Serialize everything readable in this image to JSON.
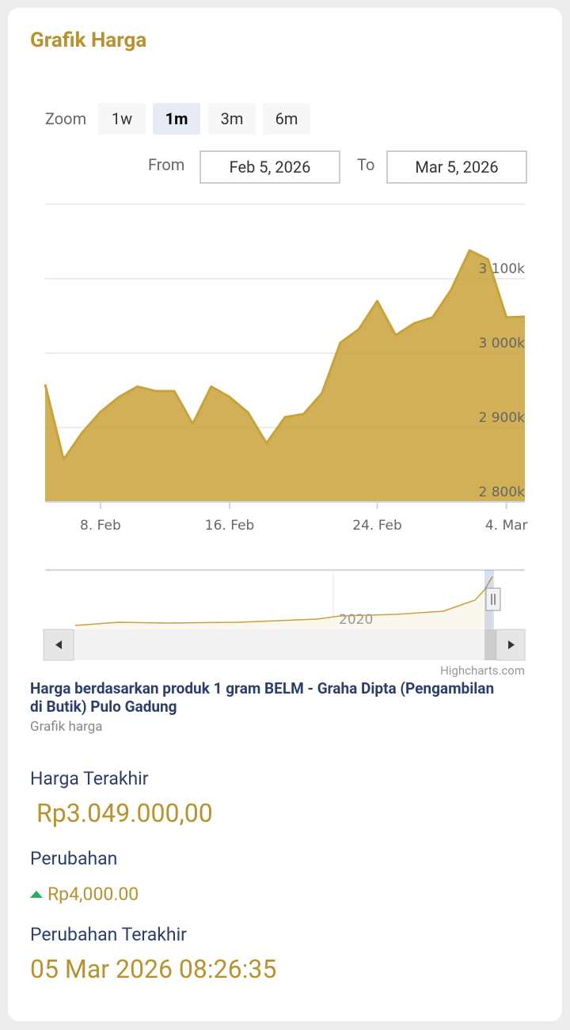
{
  "header": {
    "title": "Grafik Harga"
  },
  "zoom": {
    "label": "Zoom",
    "buttons": [
      "1w",
      "1m",
      "3m",
      "6m"
    ],
    "selected": 1
  },
  "range": {
    "from_label": "From",
    "from": "Feb 5, 2026",
    "to_label": "To",
    "to": "Mar 5, 2026"
  },
  "chart_data": {
    "type": "area",
    "color": "#c9a23a",
    "categories": [
      null,
      null,
      null,
      "8. Feb",
      null,
      null,
      null,
      null,
      null,
      null,
      "16. Feb",
      null,
      null,
      null,
      null,
      null,
      null,
      null,
      "24. Feb",
      null,
      null,
      null,
      null,
      null,
      null,
      "4. Mar",
      null
    ],
    "values": [
      2958000,
      2857000,
      2893000,
      2921000,
      2941000,
      2955000,
      2949000,
      2949000,
      2905000,
      2955000,
      2941000,
      2920000,
      2879000,
      2914000,
      2918000,
      2946000,
      3014000,
      3032000,
      3070000,
      3024000,
      3040000,
      3048000,
      3085000,
      3138000,
      3126000,
      3048000,
      3049000
    ],
    "ylim": [
      2800000,
      3200000
    ],
    "yticks": [
      {
        "value": 2800000,
        "label": "2 800k"
      },
      {
        "value": 2900000,
        "label": "2 900k"
      },
      {
        "value": 3000000,
        "label": "3 000k"
      },
      {
        "value": 3100000,
        "label": "3 100k"
      }
    ],
    "grid": true,
    "navigator_label": "2020",
    "credits": "Highcharts.com"
  },
  "caption": {
    "title": "Harga berdasarkan produk 1 gram BELM - Graha Dipta (Pengambilan di Butik) Pulo Gadung",
    "subtitle": "Grafik harga"
  },
  "stats": {
    "last_price_label": "Harga Terakhir",
    "last_price": "Rp3.049.000,00",
    "change_label": "Perubahan",
    "change": "Rp4,000.00",
    "last_change_label": "Perubahan Terakhir",
    "last_change": "05 Mar 2026 08:26:35"
  }
}
